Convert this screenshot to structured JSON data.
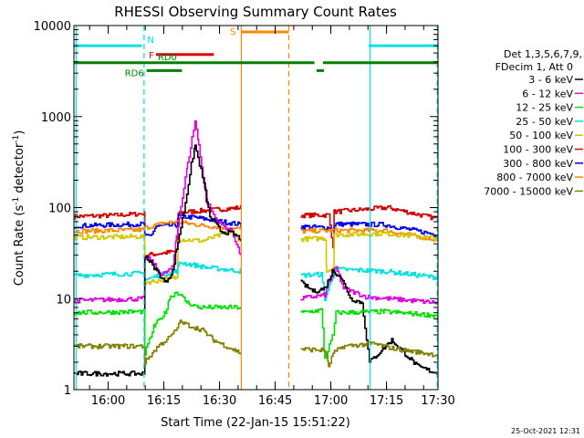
{
  "chart_data": {
    "type": "line",
    "title": "RHESSI Observing Summary Count Rates",
    "xlabel": "Start Time (22-Jan-15 15:51:22)",
    "ylabel_main": "Count Rate (s",
    "ylabel_sup1": "-1",
    "ylabel_mid": " detector",
    "ylabel_sup2": "-1",
    "ylabel_end": ")",
    "footer": "25-Oct-2021 12:31",
    "x_range_min": [
      -0.6,
      97.5
    ],
    "y_log_range": [
      1,
      10000
    ],
    "y_ticks": [
      {
        "v": 1,
        "label": "1"
      },
      {
        "v": 10,
        "label": "10"
      },
      {
        "v": 100,
        "label": "100"
      },
      {
        "v": 1000,
        "label": "1000"
      },
      {
        "v": 10000,
        "label": "10000"
      }
    ],
    "x_ticks": [
      {
        "m": 8.63,
        "label": "16:00"
      },
      {
        "m": 23.63,
        "label": "16:15"
      },
      {
        "m": 38.63,
        "label": "16:30"
      },
      {
        "m": 53.63,
        "label": "16:45"
      },
      {
        "m": 68.63,
        "label": "17:00"
      },
      {
        "m": 83.63,
        "label": "17:15"
      },
      {
        "m": 98.63,
        "label": "17:30"
      }
    ],
    "legend": {
      "header1": "Det 1,3,5,6,7,9,",
      "header2": "FDecim 1, Att 0",
      "items": [
        {
          "label": "3 - 6 keV",
          "color": "#000000"
        },
        {
          "label": "6 - 12 keV",
          "color": "#e000e0"
        },
        {
          "label": "12 - 25 keV",
          "color": "#00e000"
        },
        {
          "label": "25 - 50 keV",
          "color": "#00e0e0"
        },
        {
          "label": "50 - 100 keV",
          "color": "#d0c800"
        },
        {
          "label": "100 - 300 keV",
          "color": "#d00000"
        },
        {
          "label": "300 - 800 keV",
          "color": "#0000e0"
        },
        {
          "label": "800 - 7000 keV",
          "color": "#ff8800"
        },
        {
          "label": "7000 - 15000 keV",
          "color": "#808000"
        }
      ]
    },
    "flags": [
      {
        "label": "N",
        "color": "#00e0e0",
        "y": 6000,
        "segments": [
          [
            -0.6,
            17.7
          ],
          [
            78.8,
            97.5
          ]
        ]
      },
      {
        "label": "S",
        "color": "#ff8800",
        "y": 8500,
        "segments": [
          [
            44.5,
            57.3
          ]
        ]
      },
      {
        "label": "F",
        "color": "#e00000",
        "y": 4800,
        "segments": [
          [
            21.5,
            37.1
          ]
        ]
      },
      {
        "label": "RD0",
        "color": "#008000",
        "y": 3900,
        "segments": [
          [
            -0.6,
            64.2
          ],
          [
            66.5,
            97.5
          ]
        ]
      },
      {
        "label": "RD6",
        "color": "#008000",
        "y": 3200,
        "segments": [
          [
            19.0,
            28.5
          ],
          [
            64.8,
            66.8
          ]
        ]
      }
    ],
    "vlines": [
      {
        "m": 0.0,
        "color": "#00e0e0",
        "dash": false
      },
      {
        "m": 18.3,
        "color": "#00e0e0",
        "dash": true
      },
      {
        "m": 44.5,
        "color": "#ff8800",
        "dash": false
      },
      {
        "m": 57.3,
        "color": "#ff8800",
        "dash": true
      },
      {
        "m": 79.2,
        "color": "#00e0e0",
        "dash": false
      },
      {
        "m": 97.3,
        "color": "#00e0e0",
        "dash": true
      }
    ],
    "series": [
      {
        "color": "#d00000",
        "segments": [
          [
            [
              -0.6,
              80
            ],
            [
              10,
              82
            ],
            [
              18.3,
              86
            ],
            [
              18.5,
              30
            ],
            [
              27,
              33
            ],
            [
              27.5,
              88
            ],
            [
              44.5,
              100
            ]
          ],
          [
            [
              60.5,
              82
            ],
            [
              68,
              83
            ],
            [
              69.2,
              38
            ],
            [
              69.5,
              90
            ],
            [
              84,
              100
            ],
            [
              97.5,
              75
            ]
          ]
        ]
      },
      {
        "color": "#0000e0",
        "segments": [
          [
            [
              -0.6,
              63
            ],
            [
              18.3,
              66
            ],
            [
              18.5,
              48
            ],
            [
              20,
              49
            ],
            [
              21.5,
              62
            ],
            [
              27,
              64
            ],
            [
              27.5,
              80
            ],
            [
              32,
              78
            ],
            [
              44.5,
              65
            ]
          ],
          [
            [
              60.5,
              62
            ],
            [
              68,
              60
            ],
            [
              69.2,
              58
            ],
            [
              70,
              66
            ],
            [
              83,
              65
            ],
            [
              97.5,
              50
            ]
          ]
        ]
      },
      {
        "color": "#ff8800",
        "segments": [
          [
            [
              -0.6,
              55
            ],
            [
              18.3,
              57
            ],
            [
              18.5,
              60
            ],
            [
              24,
              68
            ],
            [
              27,
              70
            ],
            [
              33,
              64
            ],
            [
              44.5,
              58
            ]
          ],
          [
            [
              60.5,
              55
            ],
            [
              69.2,
              56
            ],
            [
              83,
              56
            ],
            [
              97.5,
              44
            ]
          ]
        ]
      },
      {
        "color": "#d0c800",
        "segments": [
          [
            [
              -0.6,
              47
            ],
            [
              18.3,
              48
            ],
            [
              18.5,
              15
            ],
            [
              27,
              17
            ],
            [
              27.5,
              45
            ],
            [
              34,
              43
            ],
            [
              42,
              55
            ],
            [
              44.5,
              42
            ]
          ],
          [
            [
              60.5,
              45
            ],
            [
              67,
              46
            ],
            [
              67.5,
              20
            ],
            [
              69.2,
              22
            ],
            [
              69.5,
              50
            ],
            [
              83,
              52
            ],
            [
              97.5,
              46
            ]
          ]
        ]
      },
      {
        "color": "#00e0e0",
        "segments": [
          [
            [
              -0.6,
              18
            ],
            [
              18.3,
              19
            ],
            [
              18.5,
              16
            ],
            [
              22,
              18
            ],
            [
              27,
              20
            ],
            [
              28,
              25
            ],
            [
              35,
              22
            ],
            [
              44.5,
              20
            ]
          ],
          [
            [
              60.5,
              18
            ],
            [
              66,
              18.5
            ],
            [
              67,
              10
            ],
            [
              69.2,
              18
            ],
            [
              70,
              21
            ],
            [
              83,
              20
            ],
            [
              97.5,
              17
            ]
          ]
        ]
      },
      {
        "color": "#e000e0",
        "segments": [
          [
            [
              -0.6,
              9.5
            ],
            [
              18.3,
              10
            ],
            [
              18.5,
              28
            ],
            [
              20,
              27
            ],
            [
              23,
              18
            ],
            [
              26,
              22
            ],
            [
              27,
              50
            ],
            [
              30,
              300
            ],
            [
              32,
              900
            ],
            [
              33,
              500
            ],
            [
              35,
              120
            ],
            [
              38,
              70
            ],
            [
              42,
              55
            ],
            [
              44.5,
              28
            ]
          ],
          [
            [
              60.5,
              10
            ],
            [
              67,
              11
            ],
            [
              68,
              15
            ],
            [
              70,
              22
            ],
            [
              72,
              13
            ],
            [
              78,
              10.5
            ],
            [
              84,
              10
            ],
            [
              97.5,
              9
            ]
          ]
        ]
      },
      {
        "color": "#000000",
        "segments": [
          [
            [
              -0.6,
              1.5
            ],
            [
              18.3,
              1.5
            ],
            [
              18.5,
              30
            ],
            [
              21,
              22
            ],
            [
              24,
              15
            ],
            [
              26,
              20
            ],
            [
              27,
              35
            ],
            [
              29,
              90
            ],
            [
              31,
              300
            ],
            [
              32,
              480
            ],
            [
              34,
              220
            ],
            [
              36,
              80
            ],
            [
              39,
              55
            ],
            [
              42,
              52
            ],
            [
              44.5,
              45
            ]
          ],
          [
            [
              60.5,
              15
            ],
            [
              64,
              12
            ],
            [
              67,
              13
            ],
            [
              69,
              20
            ],
            [
              71,
              18
            ],
            [
              74,
              10
            ],
            [
              77,
              9
            ],
            [
              79,
              2
            ],
            [
              85,
              3.5
            ],
            [
              92,
              1.8
            ],
            [
              97.5,
              1.5
            ]
          ]
        ]
      },
      {
        "color": "#00e000",
        "segments": [
          [
            [
              -0.6,
              7
            ],
            [
              18.3,
              7.2
            ],
            [
              18.5,
              2.5
            ],
            [
              21,
              5
            ],
            [
              24,
              7
            ],
            [
              25,
              10
            ],
            [
              27,
              12
            ],
            [
              30,
              9
            ],
            [
              33,
              8
            ],
            [
              44.5,
              8
            ]
          ],
          [
            [
              60.5,
              7
            ],
            [
              66,
              7.5
            ],
            [
              67,
              2.2
            ],
            [
              69.2,
              4
            ],
            [
              70,
              7
            ],
            [
              83,
              7.2
            ],
            [
              97.5,
              6.5
            ]
          ]
        ]
      },
      {
        "color": "#808000",
        "segments": [
          [
            [
              -0.6,
              3
            ],
            [
              18.3,
              3
            ],
            [
              18.5,
              2
            ],
            [
              22,
              3
            ],
            [
              26,
              4
            ],
            [
              28,
              5.5
            ],
            [
              34,
              4.5
            ],
            [
              37,
              3.5
            ],
            [
              44.5,
              2.5
            ]
          ],
          [
            [
              60.5,
              2.8
            ],
            [
              67,
              2.7
            ],
            [
              68,
              1.8
            ],
            [
              69.2,
              2.5
            ],
            [
              72,
              3
            ],
            [
              80,
              3.2
            ],
            [
              86,
              2.8
            ],
            [
              97.5,
              2.4
            ]
          ]
        ]
      }
    ]
  }
}
